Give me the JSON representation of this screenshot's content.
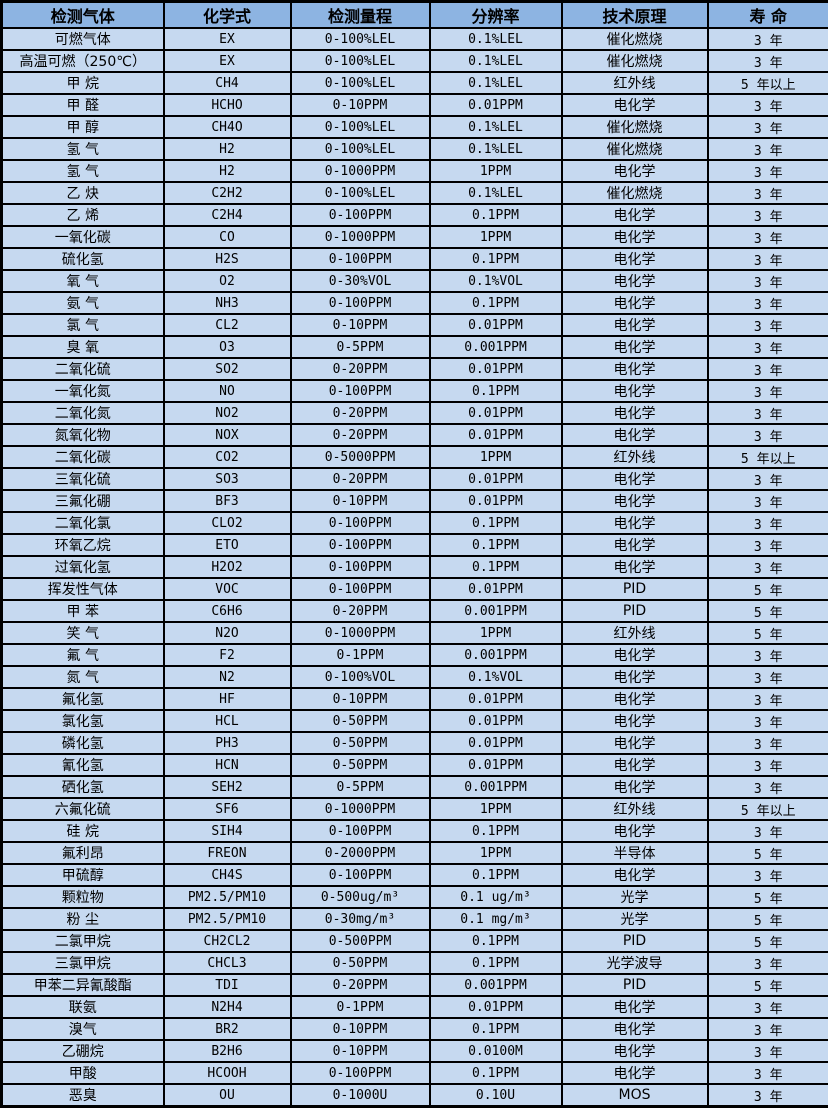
{
  "colors": {
    "header_bg": "#8db4e2",
    "row_bg": "#c6d9f0",
    "border": "#000000",
    "text": "#000000"
  },
  "chart_data": {
    "type": "table",
    "title": "",
    "columns": [
      "检测气体",
      "化学式",
      "检测量程",
      "分辨率",
      "技术原理",
      "寿 命"
    ],
    "rows": [
      [
        "可燃气体",
        "EX",
        "0-100%LEL",
        "0.1%LEL",
        "催化燃烧",
        "3 年"
      ],
      [
        "高温可燃（250℃）",
        "EX",
        "0-100%LEL",
        "0.1%LEL",
        "催化燃烧",
        "3 年"
      ],
      [
        "甲 烷",
        "CH4",
        "0-100%LEL",
        "0.1%LEL",
        "红外线",
        "5 年以上"
      ],
      [
        "甲 醛",
        "HCHO",
        "0-10PPM",
        "0.01PPM",
        "电化学",
        "3 年"
      ],
      [
        "甲 醇",
        "CH4O",
        "0-100%LEL",
        "0.1%LEL",
        "催化燃烧",
        "3 年"
      ],
      [
        "氢 气",
        "H2",
        "0-100%LEL",
        "0.1%LEL",
        "催化燃烧",
        "3 年"
      ],
      [
        "氢 气",
        "H2",
        "0-1000PPM",
        "1PPM",
        "电化学",
        "3 年"
      ],
      [
        "乙 炔",
        "C2H2",
        "0-100%LEL",
        "0.1%LEL",
        "催化燃烧",
        "3 年"
      ],
      [
        "乙 烯",
        "C2H4",
        "0-100PPM",
        "0.1PPM",
        "电化学",
        "3 年"
      ],
      [
        "一氧化碳",
        "CO",
        "0-1000PPM",
        "1PPM",
        "电化学",
        "3 年"
      ],
      [
        "硫化氢",
        "H2S",
        "0-100PPM",
        "0.1PPM",
        "电化学",
        "3 年"
      ],
      [
        "氧 气",
        "O2",
        "0-30%VOL",
        "0.1%VOL",
        "电化学",
        "3 年"
      ],
      [
        "氨 气",
        "NH3",
        "0-100PPM",
        "0.1PPM",
        "电化学",
        "3 年"
      ],
      [
        "氯 气",
        "CL2",
        "0-10PPM",
        "0.01PPM",
        "电化学",
        "3 年"
      ],
      [
        "臭 氧",
        "O3",
        "0-5PPM",
        "0.001PPM",
        "电化学",
        "3 年"
      ],
      [
        "二氧化硫",
        "SO2",
        "0-20PPM",
        "0.01PPM",
        "电化学",
        "3 年"
      ],
      [
        "一氧化氮",
        "NO",
        "0-100PPM",
        "0.1PPM",
        "电化学",
        "3 年"
      ],
      [
        "二氧化氮",
        "NO2",
        "0-20PPM",
        "0.01PPM",
        "电化学",
        "3 年"
      ],
      [
        "氮氧化物",
        "NOX",
        "0-20PPM",
        "0.01PPM",
        "电化学",
        "3 年"
      ],
      [
        "二氧化碳",
        "CO2",
        "0-5000PPM",
        "1PPM",
        "红外线",
        "5 年以上"
      ],
      [
        "三氧化硫",
        "SO3",
        "0-20PPM",
        "0.01PPM",
        "电化学",
        "3 年"
      ],
      [
        "三氟化硼",
        "BF3",
        "0-10PPM",
        "0.01PPM",
        "电化学",
        "3 年"
      ],
      [
        "二氧化氯",
        "CLO2",
        "0-100PPM",
        "0.1PPM",
        "电化学",
        "3 年"
      ],
      [
        "环氧乙烷",
        "ETO",
        "0-100PPM",
        "0.1PPM",
        "电化学",
        "3 年"
      ],
      [
        "过氧化氢",
        "H2O2",
        "0-100PPM",
        "0.1PPM",
        "电化学",
        "3 年"
      ],
      [
        "挥发性气体",
        "VOC",
        "0-100PPM",
        "0.01PPM",
        "PID",
        "5 年"
      ],
      [
        "甲 苯",
        "C6H6",
        "0-20PPM",
        "0.001PPM",
        "PID",
        "5 年"
      ],
      [
        "笑 气",
        "N2O",
        "0-1000PPM",
        "1PPM",
        "红外线",
        "5 年"
      ],
      [
        "氟 气",
        "F2",
        "0-1PPM",
        "0.001PPM",
        "电化学",
        "3 年"
      ],
      [
        "氮 气",
        "N2",
        "0-100%VOL",
        "0.1%VOL",
        "电化学",
        "3 年"
      ],
      [
        "氟化氢",
        "HF",
        "0-10PPM",
        "0.01PPM",
        "电化学",
        "3 年"
      ],
      [
        "氯化氢",
        "HCL",
        "0-50PPM",
        "0.01PPM",
        "电化学",
        "3 年"
      ],
      [
        "磷化氢",
        "PH3",
        "0-50PPM",
        "0.01PPM",
        "电化学",
        "3 年"
      ],
      [
        "氰化氢",
        "HCN",
        "0-50PPM",
        "0.01PPM",
        "电化学",
        "3 年"
      ],
      [
        "硒化氢",
        "SEH2",
        "0-5PPM",
        "0.001PPM",
        "电化学",
        "3 年"
      ],
      [
        "六氟化硫",
        "SF6",
        "0-1000PPM",
        "1PPM",
        "红外线",
        "5 年以上"
      ],
      [
        "硅 烷",
        "SIH4",
        "0-100PPM",
        "0.1PPM",
        "电化学",
        "3 年"
      ],
      [
        "氟利昂",
        "FREON",
        "0-2000PPM",
        "1PPM",
        "半导体",
        "5 年"
      ],
      [
        "甲硫醇",
        "CH4S",
        "0-100PPM",
        "0.1PPM",
        "电化学",
        "3 年"
      ],
      [
        "颗粒物",
        "PM2.5/PM10",
        "0-500ug/m³",
        "0.1 ug/m³",
        "光学",
        "5 年"
      ],
      [
        "粉 尘",
        "PM2.5/PM10",
        "0-30mg/m³",
        "0.1 mg/m³",
        "光学",
        "5 年"
      ],
      [
        "二氯甲烷",
        "CH2CL2",
        "0-500PPM",
        "0.1PPM",
        "PID",
        "5 年"
      ],
      [
        "三氯甲烷",
        "CHCL3",
        "0-50PPM",
        "0.1PPM",
        "光学波导",
        "3 年"
      ],
      [
        "甲苯二异氰酸酯",
        "TDI",
        "0-20PPM",
        "0.001PPM",
        "PID",
        "5 年"
      ],
      [
        "联氨",
        "N2H4",
        "0-1PPM",
        "0.01PPM",
        "电化学",
        "3 年"
      ],
      [
        "溴气",
        "BR2",
        "0-10PPM",
        "0.1PPM",
        "电化学",
        "3 年"
      ],
      [
        "乙硼烷",
        "B2H6",
        "0-10PPM",
        "0.0100M",
        "电化学",
        "3 年"
      ],
      [
        "甲酸",
        "HCOOH",
        "0-100PPM",
        "0.1PPM",
        "电化学",
        "3 年"
      ],
      [
        "恶臭",
        "OU",
        "0-1000U",
        "0.10U",
        "MOS",
        "3 年"
      ]
    ]
  }
}
